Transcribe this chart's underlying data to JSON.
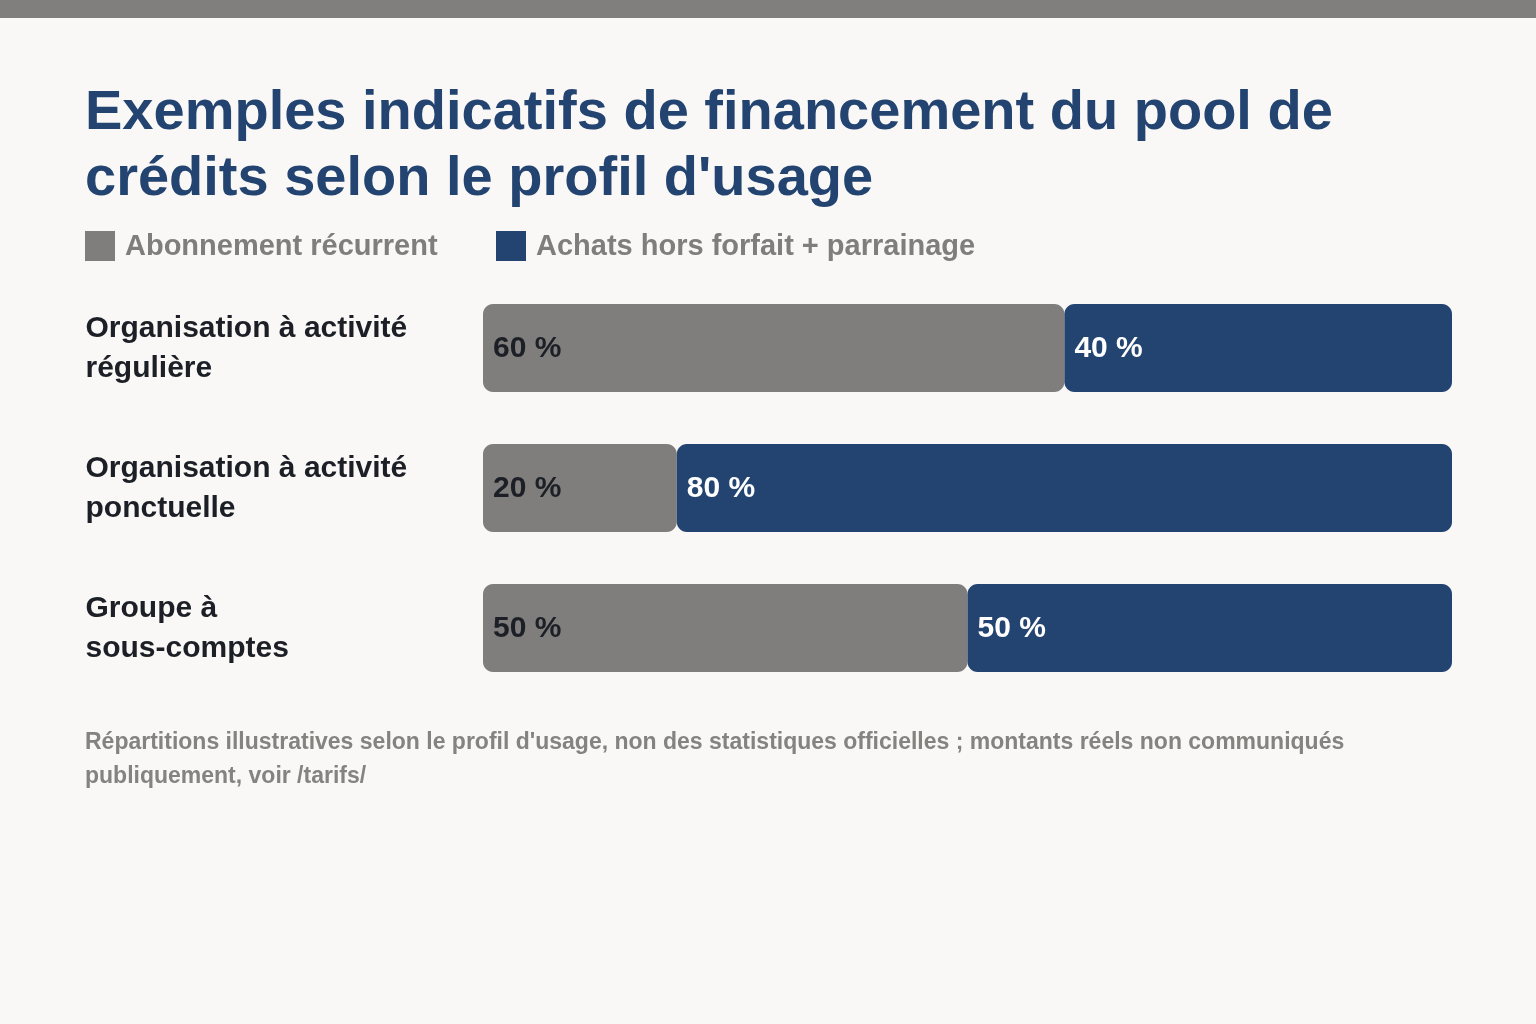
{
  "chart_data": {
    "type": "bar",
    "orientation": "horizontal",
    "stacked": true,
    "title": "Exemples indicatifs de financement du pool de crédits selon le profil d'usage",
    "categories": [
      "Organisation à activité régulière",
      "Organisation à activité ponctuelle",
      "Groupe à sous-comptes"
    ],
    "series": [
      {
        "name": "Abonnement récurrent",
        "color": "#7f7e7c",
        "values": [
          60,
          20,
          50
        ],
        "value_labels": [
          "60 %",
          "20 %",
          "50 %"
        ]
      },
      {
        "name": "Achats hors forfait + parrainage",
        "color": "#234470",
        "values": [
          40,
          80,
          50
        ],
        "value_labels": [
          "40 %",
          "80 %",
          "50 %"
        ]
      }
    ],
    "legend": "top left",
    "tick_labels": "y",
    "annotations": [
      "Répartitions illustratives selon le profil d'usage, non des statistiques officielles ; montants réels non communiqués publiquement, voir /tarifs/"
    ]
  }
}
